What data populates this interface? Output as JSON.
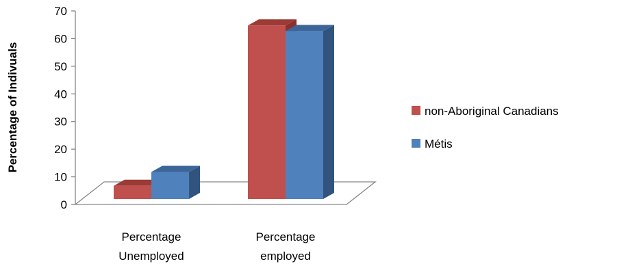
{
  "chart_data": {
    "type": "bar",
    "title": "",
    "xlabel": "",
    "ylabel": "Percentage  of Indivuals",
    "ylim": [
      0,
      70
    ],
    "yticks": [
      0,
      10,
      20,
      30,
      40,
      50,
      60,
      70
    ],
    "categories": [
      [
        "Percentage",
        "Unemployed"
      ],
      [
        "Percentage",
        "employed"
      ]
    ],
    "series": [
      {
        "name": "non-Aboriginal Canadians",
        "values": [
          5.5,
          63.5
        ]
      },
      {
        "name": "Métis",
        "values": [
          10.5,
          61.5
        ]
      }
    ],
    "legend_position": "right",
    "grid": false,
    "style": "3d-column"
  },
  "colors": {
    "series_fronts": [
      "#c0504d",
      "#4f81bd"
    ],
    "series_tops": [
      "#9c3a36",
      "#3d6698"
    ],
    "series_sides": [
      "#8a302d",
      "#31547e"
    ],
    "axis": "#868686"
  }
}
